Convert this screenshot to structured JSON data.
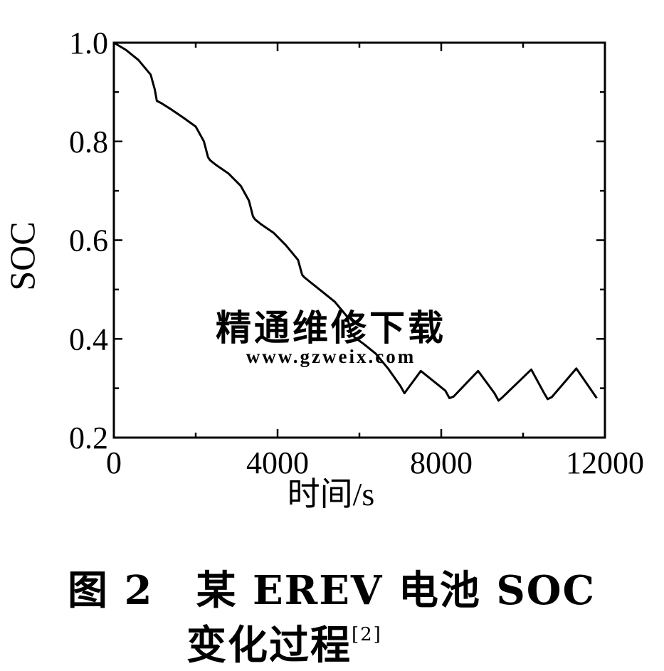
{
  "watermark": {
    "text": "精通维修下载",
    "url": "www.gzweix.com",
    "color": "#f6b49a"
  },
  "caption": {
    "label": "图 2",
    "line1": "某 EREV 电池 SOC",
    "line2": "变化过程",
    "ref": "[2]"
  },
  "chart_data": {
    "type": "line",
    "title": "",
    "xlabel": "时间/s",
    "ylabel": "SOC",
    "xlim": [
      0,
      12000
    ],
    "ylim": [
      0.2,
      1.0
    ],
    "xticks": [
      0,
      4000,
      8000,
      12000
    ],
    "xtick_labels": [
      "0",
      "4000",
      "8000",
      "12000"
    ],
    "yticks": [
      0.2,
      0.4,
      0.6,
      0.8,
      1.0
    ],
    "ytick_labels": [
      "0.2",
      "0.4",
      "0.6",
      "0.8",
      "1.0"
    ],
    "grid": false,
    "line_color": "#000000",
    "series": [
      {
        "x": [
          0,
          300,
          600,
          900,
          1000,
          1050,
          1150,
          1400,
          1700,
          2000,
          2200,
          2300,
          2350,
          2500,
          2800,
          3100,
          3300,
          3400,
          3450,
          3600,
          3900,
          4200,
          4500,
          4600,
          4650,
          4800,
          5100,
          5400,
          5700,
          5800,
          5900,
          6100,
          6400,
          6700,
          7000,
          7100,
          7500,
          8100,
          8200,
          8300,
          8900,
          9300,
          9400,
          9500,
          10200,
          10500,
          10600,
          10700,
          11300,
          11800
        ],
        "y": [
          1.0,
          0.985,
          0.965,
          0.935,
          0.905,
          0.882,
          0.878,
          0.865,
          0.848,
          0.83,
          0.8,
          0.768,
          0.762,
          0.752,
          0.735,
          0.71,
          0.68,
          0.648,
          0.642,
          0.632,
          0.615,
          0.59,
          0.56,
          0.53,
          0.525,
          0.515,
          0.495,
          0.475,
          0.445,
          0.41,
          0.402,
          0.39,
          0.37,
          0.34,
          0.305,
          0.29,
          0.335,
          0.295,
          0.28,
          0.283,
          0.335,
          0.29,
          0.275,
          0.282,
          0.338,
          0.292,
          0.278,
          0.282,
          0.34,
          0.28
        ]
      }
    ]
  }
}
